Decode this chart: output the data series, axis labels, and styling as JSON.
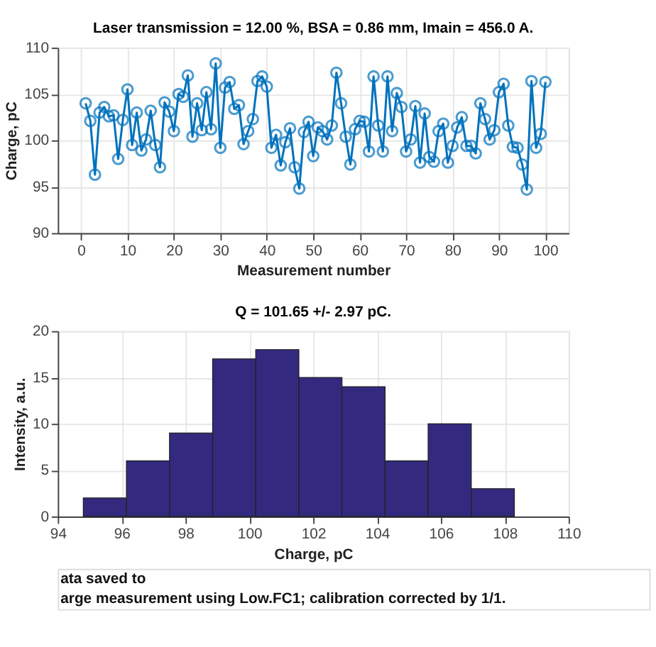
{
  "chart_data": [
    {
      "type": "line",
      "title": "Laser transmission = 12.00 %, BSA = 0.86 mm, Imain = 456.0 A.",
      "xlabel": "Measurement number",
      "ylabel": "Charge, pC",
      "x": [
        1,
        2,
        3,
        4,
        5,
        6,
        7,
        8,
        9,
        10,
        11,
        12,
        13,
        14,
        15,
        16,
        17,
        18,
        19,
        20,
        21,
        22,
        23,
        24,
        25,
        26,
        27,
        28,
        29,
        30,
        31,
        32,
        33,
        34,
        35,
        36,
        37,
        38,
        39,
        40,
        41,
        42,
        43,
        44,
        45,
        46,
        47,
        48,
        49,
        50,
        51,
        52,
        53,
        54,
        55,
        56,
        57,
        58,
        59,
        60,
        61,
        62,
        63,
        64,
        65,
        66,
        67,
        68,
        69,
        70,
        71,
        72,
        73,
        74,
        75,
        76,
        77,
        78,
        79,
        80,
        81,
        82,
        83,
        84,
        85,
        86,
        87,
        88,
        89,
        90,
        91,
        92,
        93,
        94,
        95,
        96,
        97,
        98,
        99,
        100
      ],
      "series": [
        {
          "color": "#0072bd",
          "values": [
            104.0,
            102.1,
            96.3,
            103.0,
            103.6,
            102.6,
            102.7,
            98.0,
            102.2,
            105.5,
            99.5,
            103.0,
            98.9,
            100.1,
            103.2,
            99.5,
            97.1,
            104.1,
            103.1,
            101.0,
            105.0,
            104.7,
            107.0,
            100.4,
            104.0,
            101.1,
            105.2,
            101.2,
            108.3,
            99.2,
            105.7,
            106.3,
            103.4,
            103.8,
            99.6,
            101.0,
            102.3,
            106.4,
            106.9,
            105.8,
            99.2,
            100.6,
            97.3,
            99.8,
            101.3,
            97.1,
            94.8,
            100.9,
            102.0,
            98.3,
            101.4,
            101.0,
            100.1,
            101.6,
            107.3,
            104.0,
            100.4,
            97.4,
            101.2,
            102.1,
            102.0,
            98.8,
            106.9,
            101.6,
            98.8,
            106.9,
            101.0,
            105.1,
            103.6,
            98.8,
            100.1,
            103.7,
            97.6,
            102.9,
            98.2,
            97.7,
            101.0,
            101.8,
            97.6,
            99.4,
            101.4,
            102.5,
            99.4,
            99.4,
            98.6,
            104.0,
            102.3,
            100.1,
            101.1,
            105.2,
            106.1,
            101.6,
            99.3,
            99.2,
            97.4,
            94.7,
            106.4,
            99.2,
            100.7,
            106.3
          ]
        }
      ],
      "marker": "circle",
      "line_style": "solid",
      "grid": true,
      "xlim": [
        -5,
        105
      ],
      "xticks": [
        0,
        10,
        20,
        30,
        40,
        50,
        60,
        70,
        80,
        90,
        100
      ],
      "ylim": [
        90,
        110
      ],
      "yticks": [
        90,
        95,
        100,
        105,
        110
      ]
    },
    {
      "type": "histogram",
      "title": "Q = 101.65 +/- 2.97 pC.",
      "xlabel": "Charge, pC",
      "ylabel": "Intensity, a.u.",
      "bins": [
        94.8,
        96.15,
        97.5,
        98.85,
        100.2,
        101.55,
        102.9,
        104.25,
        105.6,
        106.95,
        108.3
      ],
      "values": [
        2,
        6,
        9,
        17,
        18,
        15,
        14,
        6,
        10,
        3
      ],
      "color": "#332a80",
      "grid": true,
      "xlim": [
        94,
        110
      ],
      "xticks": [
        94,
        96,
        98,
        100,
        102,
        104,
        106,
        108,
        110
      ],
      "ylim": [
        0,
        20
      ],
      "yticks": [
        0,
        5,
        10,
        15,
        20
      ],
      "annotations": [
        "ata saved to",
        "arge measurement using Low.FC1; calibration corrected by 1/1."
      ]
    }
  ]
}
